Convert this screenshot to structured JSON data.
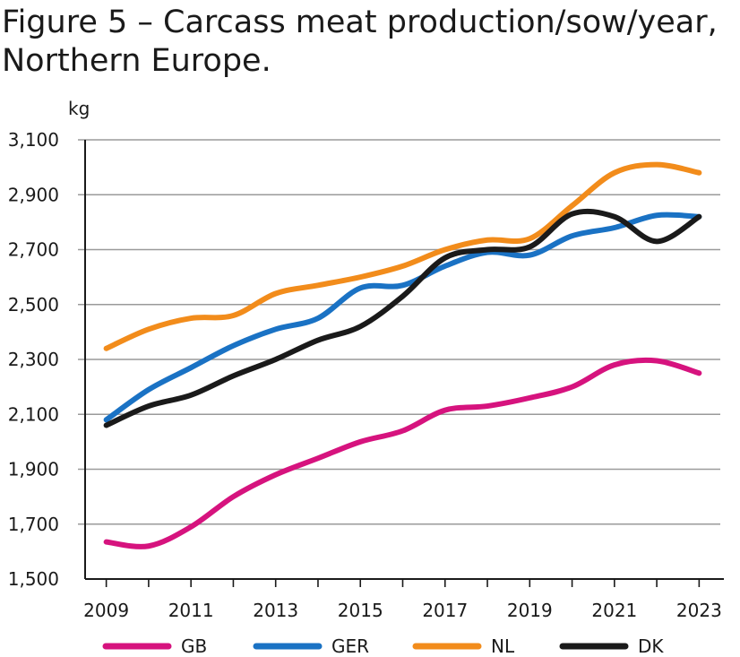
{
  "chart_data": {
    "type": "line",
    "title": "Figure 5 – Carcass meat production/sow/year, Northern Europe.",
    "xlabel": "",
    "ylabel": "kg",
    "ylim": [
      1500,
      3100
    ],
    "yticks": [
      "1,500",
      "1,700",
      "1,900",
      "2,100",
      "2,300",
      "2,500",
      "2,700",
      "2,900",
      "3,100"
    ],
    "xticks": [
      "2009",
      "2011",
      "2013",
      "2015",
      "2017",
      "2019",
      "2021",
      "2023"
    ],
    "grid": "horizontal",
    "legend_position": "bottom",
    "x": [
      2009,
      2010,
      2011,
      2012,
      2013,
      2014,
      2015,
      2016,
      2017,
      2018,
      2019,
      2020,
      2021,
      2022,
      2023
    ],
    "series": [
      {
        "name": "GB",
        "color": "#d6137e",
        "values": [
          1635,
          1620,
          1690,
          1800,
          1880,
          1940,
          2000,
          2040,
          2115,
          2130,
          2160,
          2200,
          2280,
          2295,
          2250
        ]
      },
      {
        "name": "GER",
        "color": "#1a72c4",
        "values": [
          2080,
          2190,
          2270,
          2350,
          2410,
          2450,
          2560,
          2570,
          2640,
          2690,
          2680,
          2750,
          2780,
          2825,
          2820
        ]
      },
      {
        "name": "NL",
        "color": "#f28c1b",
        "values": [
          2340,
          2410,
          2450,
          2460,
          2540,
          2570,
          2600,
          2640,
          2700,
          2735,
          2740,
          2860,
          2980,
          3010,
          2980
        ]
      },
      {
        "name": "DK",
        "color": "#1a1a1a",
        "values": [
          2060,
          2130,
          2170,
          2240,
          2300,
          2370,
          2420,
          2530,
          2670,
          2700,
          2710,
          2830,
          2820,
          2730,
          2820
        ]
      }
    ]
  }
}
